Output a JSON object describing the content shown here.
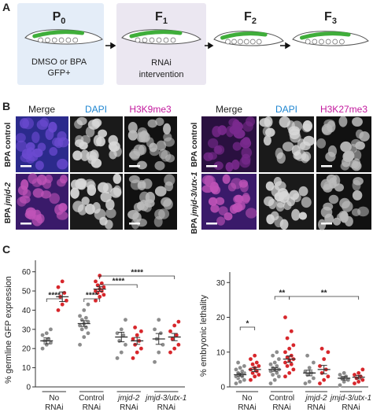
{
  "panel_a": {
    "label": "A",
    "stages": [
      {
        "base": "P",
        "sub": "0"
      },
      {
        "base": "F",
        "sub": "1"
      },
      {
        "base": "F",
        "sub": "2"
      },
      {
        "base": "F",
        "sub": "3"
      }
    ],
    "p0_text": [
      "DMSO or BPA",
      "GFP+"
    ],
    "f1_text": [
      "RNAi",
      "intervention"
    ]
  },
  "panel_b": {
    "label": "B",
    "left": {
      "columns": [
        "Merge",
        "DAPI",
        "H3K9me3"
      ],
      "rows": [
        {
          "plain": "BPA control"
        },
        {
          "plain": "BPA",
          "italic": "jmjd-2"
        }
      ]
    },
    "right": {
      "columns": [
        "Merge",
        "DAPI",
        "H3K27me3"
      ],
      "rows": [
        {
          "plain": "BPA control"
        },
        {
          "plain": "BPA",
          "italic": "jmjd-3/utx-1"
        }
      ]
    }
  },
  "panel_c": {
    "label": "C"
  },
  "chart_data": [
    {
      "type": "strip",
      "y_label": "% germline GFP expression",
      "categories": [
        [
          "No",
          "RNAi"
        ],
        [
          "Control",
          "RNAi"
        ],
        [
          "jmjd-2",
          "RNAi"
        ],
        [
          "jmjd-3/utx-1",
          "RNAi"
        ]
      ],
      "series": [
        {
          "color": "#8c8c8c",
          "values": [
            [
              20,
              22,
              23,
              24,
              25,
              27,
              28,
              30
            ],
            [
              22,
              26,
              28,
              30,
              31,
              32,
              33,
              34,
              35,
              36,
              37,
              40,
              43
            ],
            [
              15,
              18,
              22,
              24,
              27,
              28,
              30,
              35
            ],
            [
              13,
              18,
              22,
              25,
              28,
              30,
              35
            ]
          ],
          "means": [
            24,
            33,
            26,
            25
          ],
          "errors": [
            1.5,
            1.5,
            2.5,
            2.8
          ]
        },
        {
          "color": "#d7262b",
          "values": [
            [
              40,
              43,
              45,
              47,
              49,
              52,
              55
            ],
            [
              45,
              47,
              48,
              49,
              50,
              50,
              51,
              52,
              53,
              54,
              55,
              58
            ],
            [
              15,
              18,
              20,
              22,
              24,
              25,
              27,
              29,
              31
            ],
            [
              18,
              20,
              22,
              25,
              27,
              29,
              32,
              34
            ]
          ],
          "means": [
            47,
            51,
            24,
            26
          ],
          "errors": [
            2.5,
            1.2,
            1.8,
            1.9
          ]
        }
      ],
      "ylim": [
        0,
        66
      ],
      "yticks": [
        0,
        10,
        20,
        30,
        40,
        50,
        60
      ],
      "annotations": [
        "****",
        "****",
        "****",
        "****"
      ]
    },
    {
      "type": "strip",
      "y_label": "% embryonic lethality",
      "categories": [
        [
          "No",
          "RNAi"
        ],
        [
          "Control",
          "RNAi"
        ],
        [
          "jmjd-2",
          "RNAi"
        ],
        [
          "jmjd-3/utx-1",
          "RNAi"
        ]
      ],
      "series": [
        {
          "color": "#8c8c8c",
          "values": [
            [
              1,
              1.5,
              2,
              2.5,
              3,
              3,
              3.5,
              4,
              4,
              4.5,
              5,
              5.5,
              6,
              7
            ],
            [
              1,
              2,
              3,
              3.5,
              4,
              4.5,
              5,
              5,
              5.5,
              6,
              6.5,
              7,
              8,
              9,
              10
            ],
            [
              1,
              1.5,
              2.5,
              3.5,
              4,
              4.5,
              5.5,
              7,
              9
            ],
            [
              0.5,
              1.5,
              2,
              2.5,
              3,
              3.5,
              4
            ]
          ],
          "means": [
            3.5,
            5,
            4,
            2.5
          ],
          "errors": [
            0.4,
            0.5,
            0.8,
            0.5
          ]
        },
        {
          "color": "#d7262b",
          "values": [
            [
              2,
              3,
              3.5,
              4,
              4.5,
              5,
              5.5,
              6,
              6.5,
              7,
              8,
              9
            ],
            [
              3,
              4,
              5,
              6,
              6.5,
              7,
              7.5,
              8,
              8.5,
              9,
              10,
              11,
              12,
              14,
              16,
              20
            ],
            [
              1,
              2,
              3,
              4,
              5,
              6,
              8,
              10,
              11
            ],
            [
              1,
              1.5,
              2,
              2.5,
              3,
              3.5,
              4,
              5
            ]
          ],
          "means": [
            5,
            8,
            5,
            2.8
          ],
          "errors": [
            0.6,
            0.9,
            1.2,
            0.5
          ]
        }
      ],
      "ylim": [
        0,
        33
      ],
      "yticks": [
        0,
        10,
        20,
        30
      ],
      "annotations": [
        "*",
        "**",
        "**"
      ]
    }
  ]
}
